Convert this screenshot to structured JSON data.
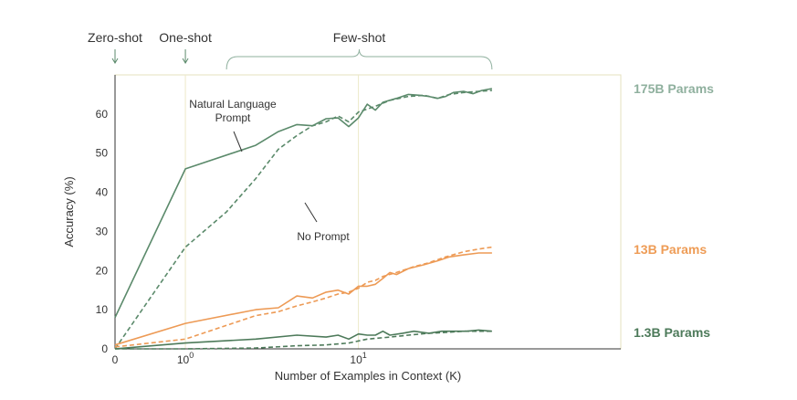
{
  "chart_data": {
    "type": "line",
    "xlabel": "Number of Examples in Context  (K)",
    "ylabel": "Accuracy (%)",
    "x_scale": "symlog",
    "ylim": [
      0,
      70
    ],
    "yticks": [
      0,
      10,
      20,
      30,
      40,
      50,
      60
    ],
    "xticks": [
      {
        "value": 0,
        "base": "0",
        "exp": ""
      },
      {
        "value": 1,
        "base": "10",
        "exp": "0"
      },
      {
        "value": 10,
        "base": "10",
        "exp": "1"
      }
    ],
    "regimes": [
      {
        "label": "Zero-shot",
        "x": 0
      },
      {
        "label": "One-shot",
        "x": 1
      },
      {
        "label": "Few-shot",
        "x_range": [
          2,
          40
        ]
      }
    ],
    "annotations": {
      "natural_language_prompt": [
        "Natural Language",
        "Prompt"
      ],
      "no_prompt": "No Prompt"
    },
    "colors": {
      "model_175b": "#5b8a6b",
      "model_13b": "#ed9a55",
      "model_1_3b": "#4d7a5a",
      "label_175b": "#8fb09e",
      "label_13b": "#ee9c56",
      "label_1_3b": "#4d7a5a"
    },
    "series": [
      {
        "name": "175B Params",
        "prompt": "natural language",
        "color": "#5b8a6b",
        "dashed": false,
        "points": [
          [
            0,
            8
          ],
          [
            1,
            46
          ],
          [
            3,
            52
          ],
          [
            4,
            55.5
          ],
          [
            5,
            57.3
          ],
          [
            6,
            57
          ],
          [
            7,
            58.8
          ],
          [
            8,
            59
          ],
          [
            9,
            56.8
          ],
          [
            10,
            59
          ],
          [
            11,
            62.5
          ],
          [
            12,
            61
          ],
          [
            13,
            63
          ],
          [
            15,
            64
          ],
          [
            17,
            65
          ],
          [
            19,
            64.8
          ],
          [
            21,
            64.5
          ],
          [
            23,
            64
          ],
          [
            25,
            64.5
          ],
          [
            27,
            65.5
          ],
          [
            30,
            65.8
          ],
          [
            33,
            65.2
          ],
          [
            36,
            66
          ],
          [
            40,
            66.5
          ]
        ]
      },
      {
        "name": "175B Params",
        "prompt": "none",
        "color": "#5b8a6b",
        "dashed": true,
        "points": [
          [
            0,
            0
          ],
          [
            1,
            26
          ],
          [
            2,
            35
          ],
          [
            3,
            43.5
          ],
          [
            4,
            51
          ],
          [
            5,
            54.5
          ],
          [
            6,
            57
          ],
          [
            7,
            58
          ],
          [
            8,
            59.5
          ],
          [
            9,
            58
          ],
          [
            10,
            60.5
          ],
          [
            12,
            62
          ],
          [
            14,
            63.5
          ],
          [
            17,
            64.5
          ],
          [
            20,
            64.8
          ],
          [
            23,
            64
          ],
          [
            26,
            65
          ],
          [
            30,
            65.5
          ],
          [
            35,
            65.8
          ],
          [
            40,
            66
          ]
        ]
      },
      {
        "name": "13B Params",
        "prompt": "natural language",
        "color": "#ed9a55",
        "dashed": false,
        "points": [
          [
            0,
            1
          ],
          [
            1,
            6.5
          ],
          [
            3,
            10
          ],
          [
            4,
            10.5
          ],
          [
            5,
            13.5
          ],
          [
            6,
            13
          ],
          [
            7,
            14.5
          ],
          [
            8,
            15
          ],
          [
            9,
            14
          ],
          [
            10,
            16
          ],
          [
            11,
            16
          ],
          [
            12,
            16.5
          ],
          [
            13,
            18
          ],
          [
            14,
            19.5
          ],
          [
            15,
            19
          ],
          [
            17,
            20.5
          ],
          [
            20,
            21.5
          ],
          [
            23,
            22.5
          ],
          [
            26,
            23.5
          ],
          [
            30,
            24
          ],
          [
            35,
            24.5
          ],
          [
            40,
            24.5
          ]
        ]
      },
      {
        "name": "13B Params",
        "prompt": "none",
        "color": "#ed9a55",
        "dashed": true,
        "points": [
          [
            0,
            0.5
          ],
          [
            1,
            2.5
          ],
          [
            3,
            8.5
          ],
          [
            4,
            9.5
          ],
          [
            5,
            11
          ],
          [
            6,
            12
          ],
          [
            7,
            13
          ],
          [
            8,
            14
          ],
          [
            9,
            14.5
          ],
          [
            10,
            15.5
          ],
          [
            11,
            17
          ],
          [
            12,
            17.5
          ],
          [
            13,
            18.5
          ],
          [
            15,
            19.5
          ],
          [
            18,
            21
          ],
          [
            21,
            22
          ],
          [
            25,
            23.5
          ],
          [
            30,
            24.8
          ],
          [
            35,
            25.5
          ],
          [
            40,
            26
          ]
        ]
      },
      {
        "name": "1.3B Params",
        "prompt": "natural language",
        "color": "#4d7a5a",
        "dashed": false,
        "points": [
          [
            0,
            0
          ],
          [
            1,
            1.5
          ],
          [
            3,
            2.5
          ],
          [
            5,
            3.5
          ],
          [
            7,
            3
          ],
          [
            8,
            3.5
          ],
          [
            9,
            2.5
          ],
          [
            10,
            3.8
          ],
          [
            11,
            3.5
          ],
          [
            12,
            3.5
          ],
          [
            13,
            4.5
          ],
          [
            14,
            3.5
          ],
          [
            16,
            4
          ],
          [
            18,
            4.5
          ],
          [
            21,
            4
          ],
          [
            24,
            4.5
          ],
          [
            27,
            4.5
          ],
          [
            31,
            4.5
          ],
          [
            35,
            4.8
          ],
          [
            40,
            4.5
          ]
        ]
      },
      {
        "name": "1.3B Params",
        "prompt": "none",
        "color": "#4d7a5a",
        "dashed": true,
        "points": [
          [
            0,
            0
          ],
          [
            1,
            0
          ],
          [
            3,
            0.2
          ],
          [
            5,
            0.8
          ],
          [
            7,
            1
          ],
          [
            9,
            1.5
          ],
          [
            11,
            2.5
          ],
          [
            14,
            3
          ],
          [
            17,
            3.5
          ],
          [
            21,
            4
          ],
          [
            25,
            4.2
          ],
          [
            30,
            4.5
          ],
          [
            35,
            4.5
          ],
          [
            40,
            4.5
          ]
        ]
      }
    ]
  }
}
